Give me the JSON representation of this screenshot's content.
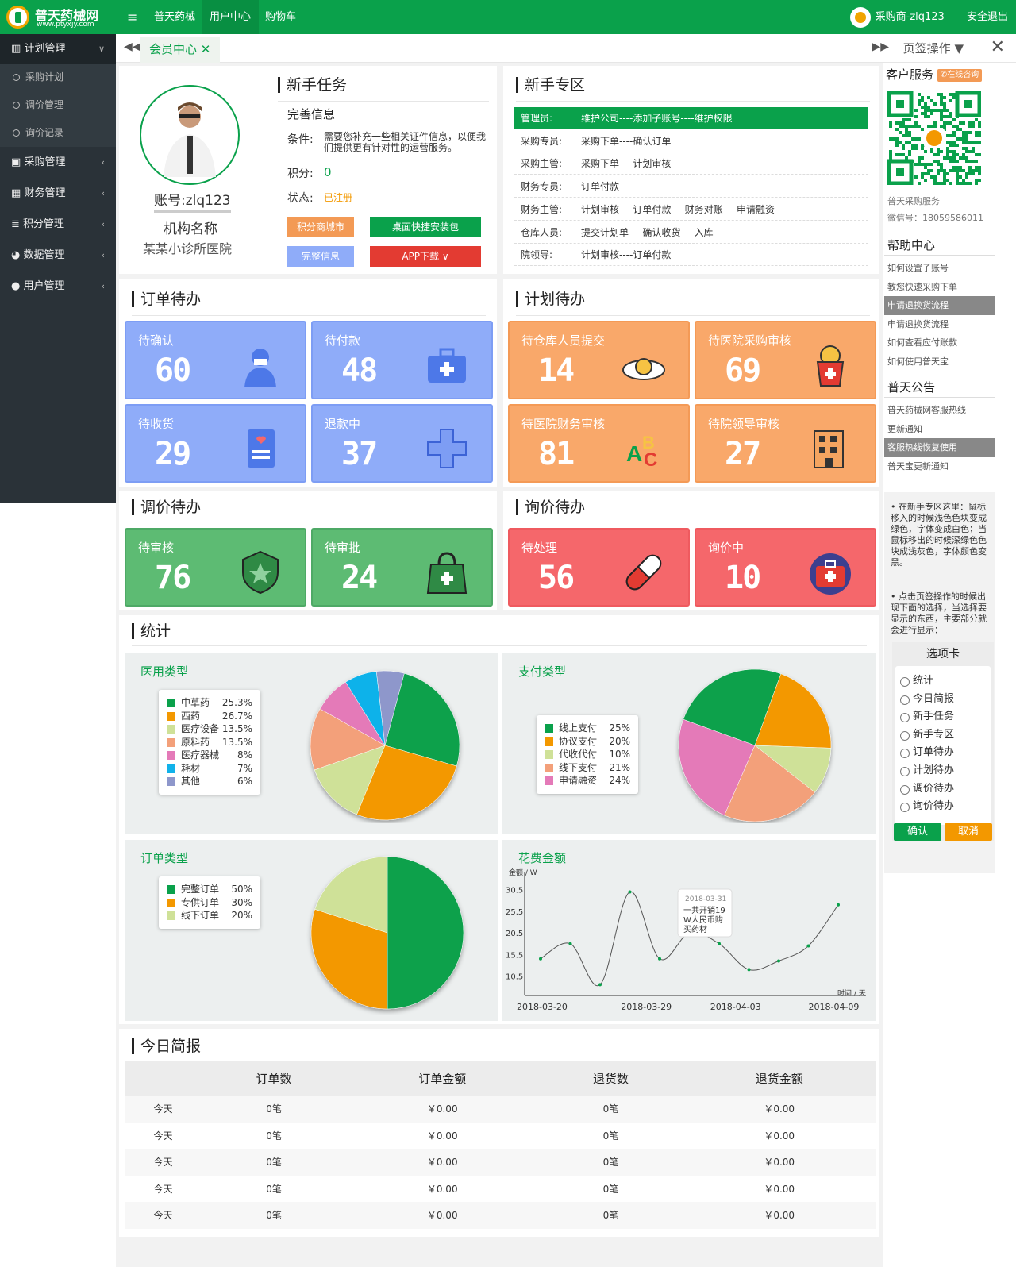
{
  "brand": {
    "name": "普天药械网",
    "url": "www.ptyxjy.com"
  },
  "topnav": [
    "普天药械",
    "用户中心",
    "购物车"
  ],
  "user": {
    "label": "采购商-zlq123",
    "logout": "安全退出"
  },
  "sidebar": {
    "group": "计划管理",
    "subitems": [
      "采购计划",
      "调价管理",
      "询价记录"
    ],
    "items": [
      "采购管理",
      "财务管理",
      "积分管理",
      "数据管理",
      "用户管理"
    ]
  },
  "tabs": {
    "active": "会员中心",
    "page_ops": "页签操作"
  },
  "profile": {
    "account_label": "账号:",
    "account": "zlq123",
    "org_label": "机构名称",
    "org_name": "某某小诊所医院"
  },
  "newbie_task": {
    "title": "新手任务",
    "sub": "完善信息",
    "cond_label": "条件:",
    "cond_text": "需要您补充一些相关证件信息，以便我们提供更有针对性的运营服务。",
    "points_label": "积分:",
    "points": "0",
    "status_label": "状态:",
    "status": "已注册",
    "btn_mall": "积分商城市",
    "btn_install": "桌面快捷安装包",
    "btn_complete": "完整信息",
    "btn_app": "APP下载"
  },
  "newbie_zone": {
    "title": "新手专区",
    "rows": [
      {
        "role": "管理员:",
        "desc": "维护公司----添加子账号----维护权限"
      },
      {
        "role": "采购专员:",
        "desc": "采购下单----确认订单"
      },
      {
        "role": "采购主管:",
        "desc": "采购下单----计划审核"
      },
      {
        "role": "财务专员:",
        "desc": "订单付款"
      },
      {
        "role": "财务主管:",
        "desc": "计划审核----订单付款----财务对账----申请融资"
      },
      {
        "role": "仓库人员:",
        "desc": "提交计划单----确认收货----入库"
      },
      {
        "role": "院领导:",
        "desc": "计划审核----订单付款"
      }
    ]
  },
  "order_todo": {
    "title": "订单待办",
    "cards": [
      {
        "label": "待确认",
        "value": "60"
      },
      {
        "label": "待付款",
        "value": "48"
      },
      {
        "label": "待收货",
        "value": "29"
      },
      {
        "label": "退款中",
        "value": "37"
      }
    ]
  },
  "plan_todo": {
    "title": "计划待办",
    "cards": [
      {
        "label": "待仓库人员提交",
        "value": "14"
      },
      {
        "label": "待医院采购审核",
        "value": "69"
      },
      {
        "label": "待医院财务审核",
        "value": "81"
      },
      {
        "label": "待院领导审核",
        "value": "27"
      }
    ]
  },
  "price_todo": {
    "title": "调价待办",
    "cards": [
      {
        "label": "待审核",
        "value": "76"
      },
      {
        "label": "待审批",
        "value": "24"
      }
    ]
  },
  "inquiry_todo": {
    "title": "询价待办",
    "cards": [
      {
        "label": "待处理",
        "value": "56"
      },
      {
        "label": "询价中",
        "value": "10"
      }
    ]
  },
  "stats": {
    "title": "统计"
  },
  "chart_data": [
    {
      "type": "pie",
      "title": "医用类型",
      "labels": [
        "中草药",
        "西药",
        "医疗设备",
        "原料药",
        "医疗器械",
        "耗材",
        "其他"
      ],
      "values": [
        25.3,
        26.7,
        13.5,
        13.5,
        8,
        7,
        6
      ],
      "display": [
        "25.3%",
        "26.7%",
        "13.5%",
        "13.5%",
        "8%",
        "7%",
        "6%"
      ],
      "colors": [
        "#0aa14b",
        "#f39800",
        "#cfe198",
        "#f3a07a",
        "#e47ab8",
        "#11b2ea",
        "#8e97cb"
      ]
    },
    {
      "type": "pie",
      "title": "支付类型",
      "labels": [
        "线上支付",
        "协议支付",
        "代收代付",
        "线下支付",
        "申请融资"
      ],
      "values": [
        25,
        20,
        10,
        21,
        24
      ],
      "display": [
        "25%",
        "20%",
        "10%",
        "21%",
        "24%"
      ],
      "colors": [
        "#0aa14b",
        "#f39800",
        "#cfe198",
        "#f3a07a",
        "#e47ab8"
      ]
    },
    {
      "type": "pie",
      "title": "订单类型",
      "labels": [
        "完整订单",
        "专供订单",
        "线下订单"
      ],
      "values": [
        50,
        30,
        20
      ],
      "display": [
        "50%",
        "30%",
        "20%"
      ],
      "colors": [
        "#0aa14b",
        "#f39800",
        "#cfe198"
      ]
    },
    {
      "type": "line",
      "title": "花费金额",
      "ylabel": "金额 / W",
      "xlabel": "时间 / 天",
      "yticks": [
        10.5,
        15.5,
        20.5,
        25.5,
        30.5
      ],
      "ylim": [
        6,
        31
      ],
      "xticks": [
        "2018-03-20",
        "2018-03-29",
        "2018-04-03",
        "2018-04-09"
      ],
      "x": [
        0,
        1,
        2,
        3,
        4,
        5,
        6,
        7,
        8,
        9,
        10
      ],
      "y": [
        14.5,
        18,
        8.5,
        30,
        14.5,
        20.5,
        18,
        12,
        14,
        17.5,
        27
      ],
      "tooltip": {
        "date": "2018-03-31",
        "text": "一共开销19W人民币购买药材"
      },
      "color": "#0aa14b"
    }
  ],
  "brief": {
    "title": "今日简报",
    "headers": [
      "",
      "订单数",
      "订单金额",
      "退货数",
      "退货金额"
    ],
    "rows": [
      [
        "今天",
        "0笔",
        "￥0.00",
        "0笔",
        "￥0.00"
      ],
      [
        "今天",
        "0笔",
        "￥0.00",
        "0笔",
        "￥0.00"
      ],
      [
        "今天",
        "0笔",
        "￥0.00",
        "0笔",
        "￥0.00"
      ],
      [
        "今天",
        "0笔",
        "￥0.00",
        "0笔",
        "￥0.00"
      ],
      [
        "今天",
        "0笔",
        "￥0.00",
        "0笔",
        "￥0.00"
      ]
    ]
  },
  "right": {
    "service_title": "客户服务",
    "service_badge": "在线咨询",
    "service_name": "普天采购服务",
    "wechat": "微信号：18059586011",
    "help_title": "帮助中心",
    "help_links": [
      "如何设置子账号",
      "教您快速采购下单",
      "申请退换货流程",
      "申请退换货流程",
      "如何查看应付账款",
      "如何使用普天宝"
    ],
    "notice_title": "普天公告",
    "notice_links": [
      "普天药械网客服热线",
      "更新通知",
      "客服热线恢复使用",
      "普天宝更新通知"
    ],
    "note1": "在新手专区这里：鼠标移入的时候浅色色块变成绿色，字体变成白色；当鼠标移出的时候深绿色色块成浅灰色，字体颜色变黑。",
    "note2": "点击页签操作的时候出现下面的选择，当选择要显示的东西，主要部分就会进行显示：",
    "opt_title": "选项卡",
    "opts": [
      "统计",
      "今日简报",
      "新手任务",
      "新手专区",
      "订单待办",
      "计划待办",
      "调价待办",
      "询价待办"
    ],
    "ok": "确认",
    "cancel": "取消"
  }
}
